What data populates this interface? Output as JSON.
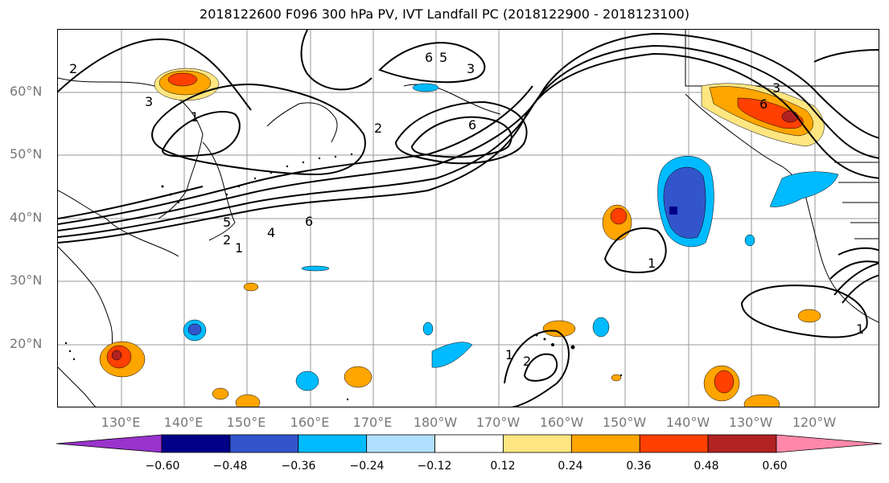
{
  "title": "2018122600 F096 300 hPa PV, IVT Landfall PC (2018122900 - 2018123100)",
  "lat_labels": [
    "60°N",
    "50°N",
    "40°N",
    "30°N",
    "20°N"
  ],
  "lon_labels": [
    "130°E",
    "140°E",
    "150°E",
    "160°E",
    "170°E",
    "180°W",
    "170°W",
    "160°W",
    "150°W",
    "140°W",
    "130°W",
    "120°W"
  ],
  "contour_labels": [
    "2",
    "3",
    "1",
    "6",
    "2",
    "5",
    "6",
    "6",
    "3",
    "3",
    "5",
    "2",
    "4",
    "6",
    "1",
    "1",
    "2",
    "1",
    "1"
  ],
  "colorbar": {
    "ticks": [
      "−0.60",
      "−0.48",
      "−0.36",
      "−0.24",
      "−0.12",
      "0.12",
      "0.24",
      "0.36",
      "0.48",
      "0.60"
    ],
    "colors": [
      "#9933cc",
      "#000088",
      "#3355cc",
      "#00bbff",
      "#b0e0ff",
      "#ffffff",
      "#ffe680",
      "#ffa500",
      "#ff4000",
      "#b22222",
      "#ff88aa"
    ]
  }
}
